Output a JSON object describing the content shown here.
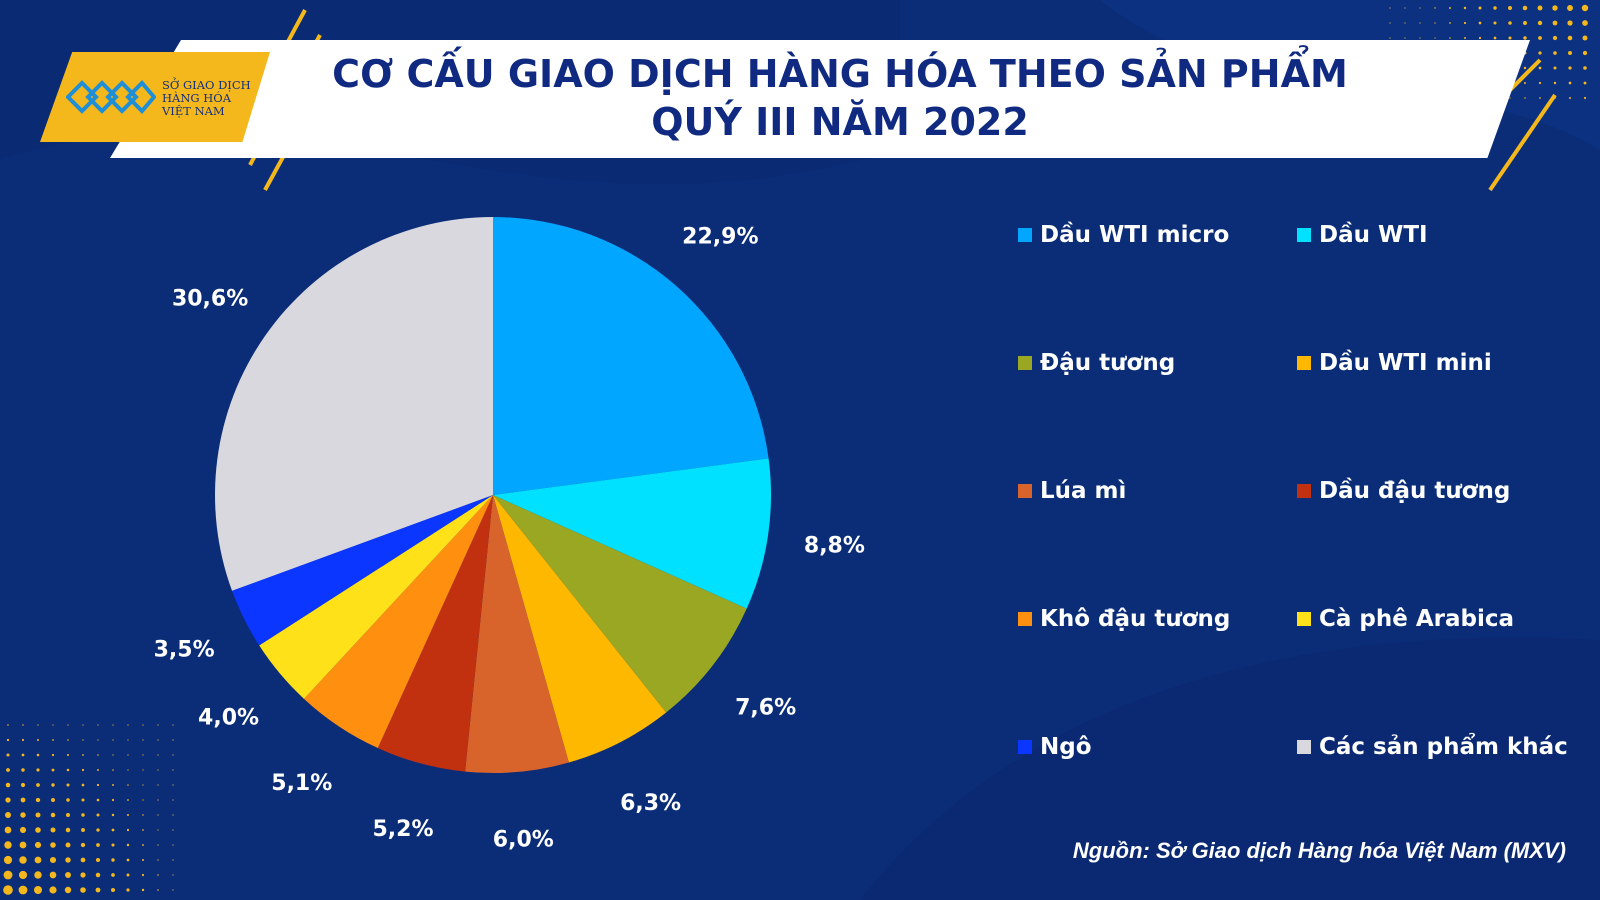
{
  "header": {
    "title_line1": "CƠ CẤU GIAO DỊCH HÀNG HÓA THEO SẢN PHẨM",
    "title_line2": "QUÝ III NĂM 2022"
  },
  "logo": {
    "line1": "SỞ GIAO DỊCH",
    "line2": "HÀNG HÓA",
    "line3": "VIỆT NAM",
    "brand_color": "#f5b81c"
  },
  "colors": {
    "background": "#0b2d78",
    "title_text": "#0f2a80",
    "accent": "#f5b81c"
  },
  "source": "Nguồn: Sở Giao dịch Hàng hóa Việt Nam (MXV)",
  "chart_data": {
    "type": "pie",
    "title": "CƠ CẤU GIAO DỊCH HÀNG HÓA THEO SẢN PHẨM QUÝ III NĂM 2022",
    "slices": [
      {
        "name": "Dầu WTI micro",
        "value": 22.9,
        "label": "22,9%",
        "color": "#00a6ff"
      },
      {
        "name": "Dầu WTI",
        "value": 8.8,
        "label": "8,8%",
        "color": "#00e1ff"
      },
      {
        "name": "Đậu tương",
        "value": 7.6,
        "label": "7,6%",
        "color": "#9aa722"
      },
      {
        "name": "Dầu WTI mini",
        "value": 6.3,
        "label": "6,3%",
        "color": "#ffb800"
      },
      {
        "name": "Lúa mì",
        "value": 6.0,
        "label": "6,0%",
        "color": "#d9642b"
      },
      {
        "name": "Dầu đậu tương",
        "value": 5.2,
        "label": "5,2%",
        "color": "#c1300f"
      },
      {
        "name": "Khô đậu tương",
        "value": 5.1,
        "label": "5,1%",
        "color": "#ff8f0f"
      },
      {
        "name": "Cà phê Arabica",
        "value": 4.0,
        "label": "4,0%",
        "color": "#ffe11a"
      },
      {
        "name": "Ngô",
        "value": 3.5,
        "label": "3,5%",
        "color": "#0a36ff"
      },
      {
        "name": "Các sản phẩm khác",
        "value": 30.6,
        "label": "30,6%",
        "color": "#d9d8de"
      }
    ],
    "start": "12 o'clock",
    "direction": "clockwise",
    "legend_position": "right, two columns"
  }
}
